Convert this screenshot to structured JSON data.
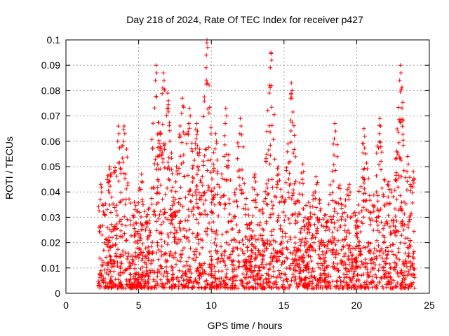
{
  "chart_data": {
    "type": "scatter",
    "title": "Day 218 of 2024, Rate Of TEC Index for receiver p427",
    "xlabel": "GPS time / hours",
    "ylabel": "ROTI / TECUs",
    "xlim": [
      0,
      25
    ],
    "ylim": [
      0,
      0.1
    ],
    "x_ticks": [
      "0",
      "5",
      "10",
      "15",
      "20",
      "25"
    ],
    "y_ticks": [
      "0",
      "0.01",
      "0.02",
      "0.03",
      "0.04",
      "0.05",
      "0.06",
      "0.07",
      "0.08",
      "0.09",
      "0.1"
    ],
    "grid": true,
    "marker": "+",
    "color": "#ff0000",
    "data_x_range": [
      2.2,
      24.0
    ],
    "series": [
      {
        "name": "",
        "envelope_peaks": [
          {
            "x": 2.4,
            "y": 0.043
          },
          {
            "x": 3.0,
            "y": 0.05
          },
          {
            "x": 3.6,
            "y": 0.066
          },
          {
            "x": 4.0,
            "y": 0.066
          },
          {
            "x": 4.7,
            "y": 0.036
          },
          {
            "x": 5.2,
            "y": 0.047
          },
          {
            "x": 6.2,
            "y": 0.09
          },
          {
            "x": 6.7,
            "y": 0.087
          },
          {
            "x": 7.0,
            "y": 0.079
          },
          {
            "x": 7.6,
            "y": 0.05
          },
          {
            "x": 8.0,
            "y": 0.077
          },
          {
            "x": 8.5,
            "y": 0.073
          },
          {
            "x": 9.0,
            "y": 0.067
          },
          {
            "x": 9.7,
            "y": 0.1
          },
          {
            "x": 10.3,
            "y": 0.063
          },
          {
            "x": 11.0,
            "y": 0.073
          },
          {
            "x": 12.0,
            "y": 0.069
          },
          {
            "x": 13.0,
            "y": 0.047
          },
          {
            "x": 14.1,
            "y": 0.095
          },
          {
            "x": 14.6,
            "y": 0.05
          },
          {
            "x": 15.5,
            "y": 0.083
          },
          {
            "x": 16.3,
            "y": 0.051
          },
          {
            "x": 17.2,
            "y": 0.046
          },
          {
            "x": 18.5,
            "y": 0.067
          },
          {
            "x": 19.5,
            "y": 0.043
          },
          {
            "x": 20.5,
            "y": 0.065
          },
          {
            "x": 21.6,
            "y": 0.069
          },
          {
            "x": 22.2,
            "y": 0.044
          },
          {
            "x": 23.0,
            "y": 0.09
          },
          {
            "x": 23.5,
            "y": 0.054
          },
          {
            "x": 23.9,
            "y": 0.048
          }
        ],
        "typical_range": [
          0.002,
          0.03
        ]
      }
    ]
  }
}
